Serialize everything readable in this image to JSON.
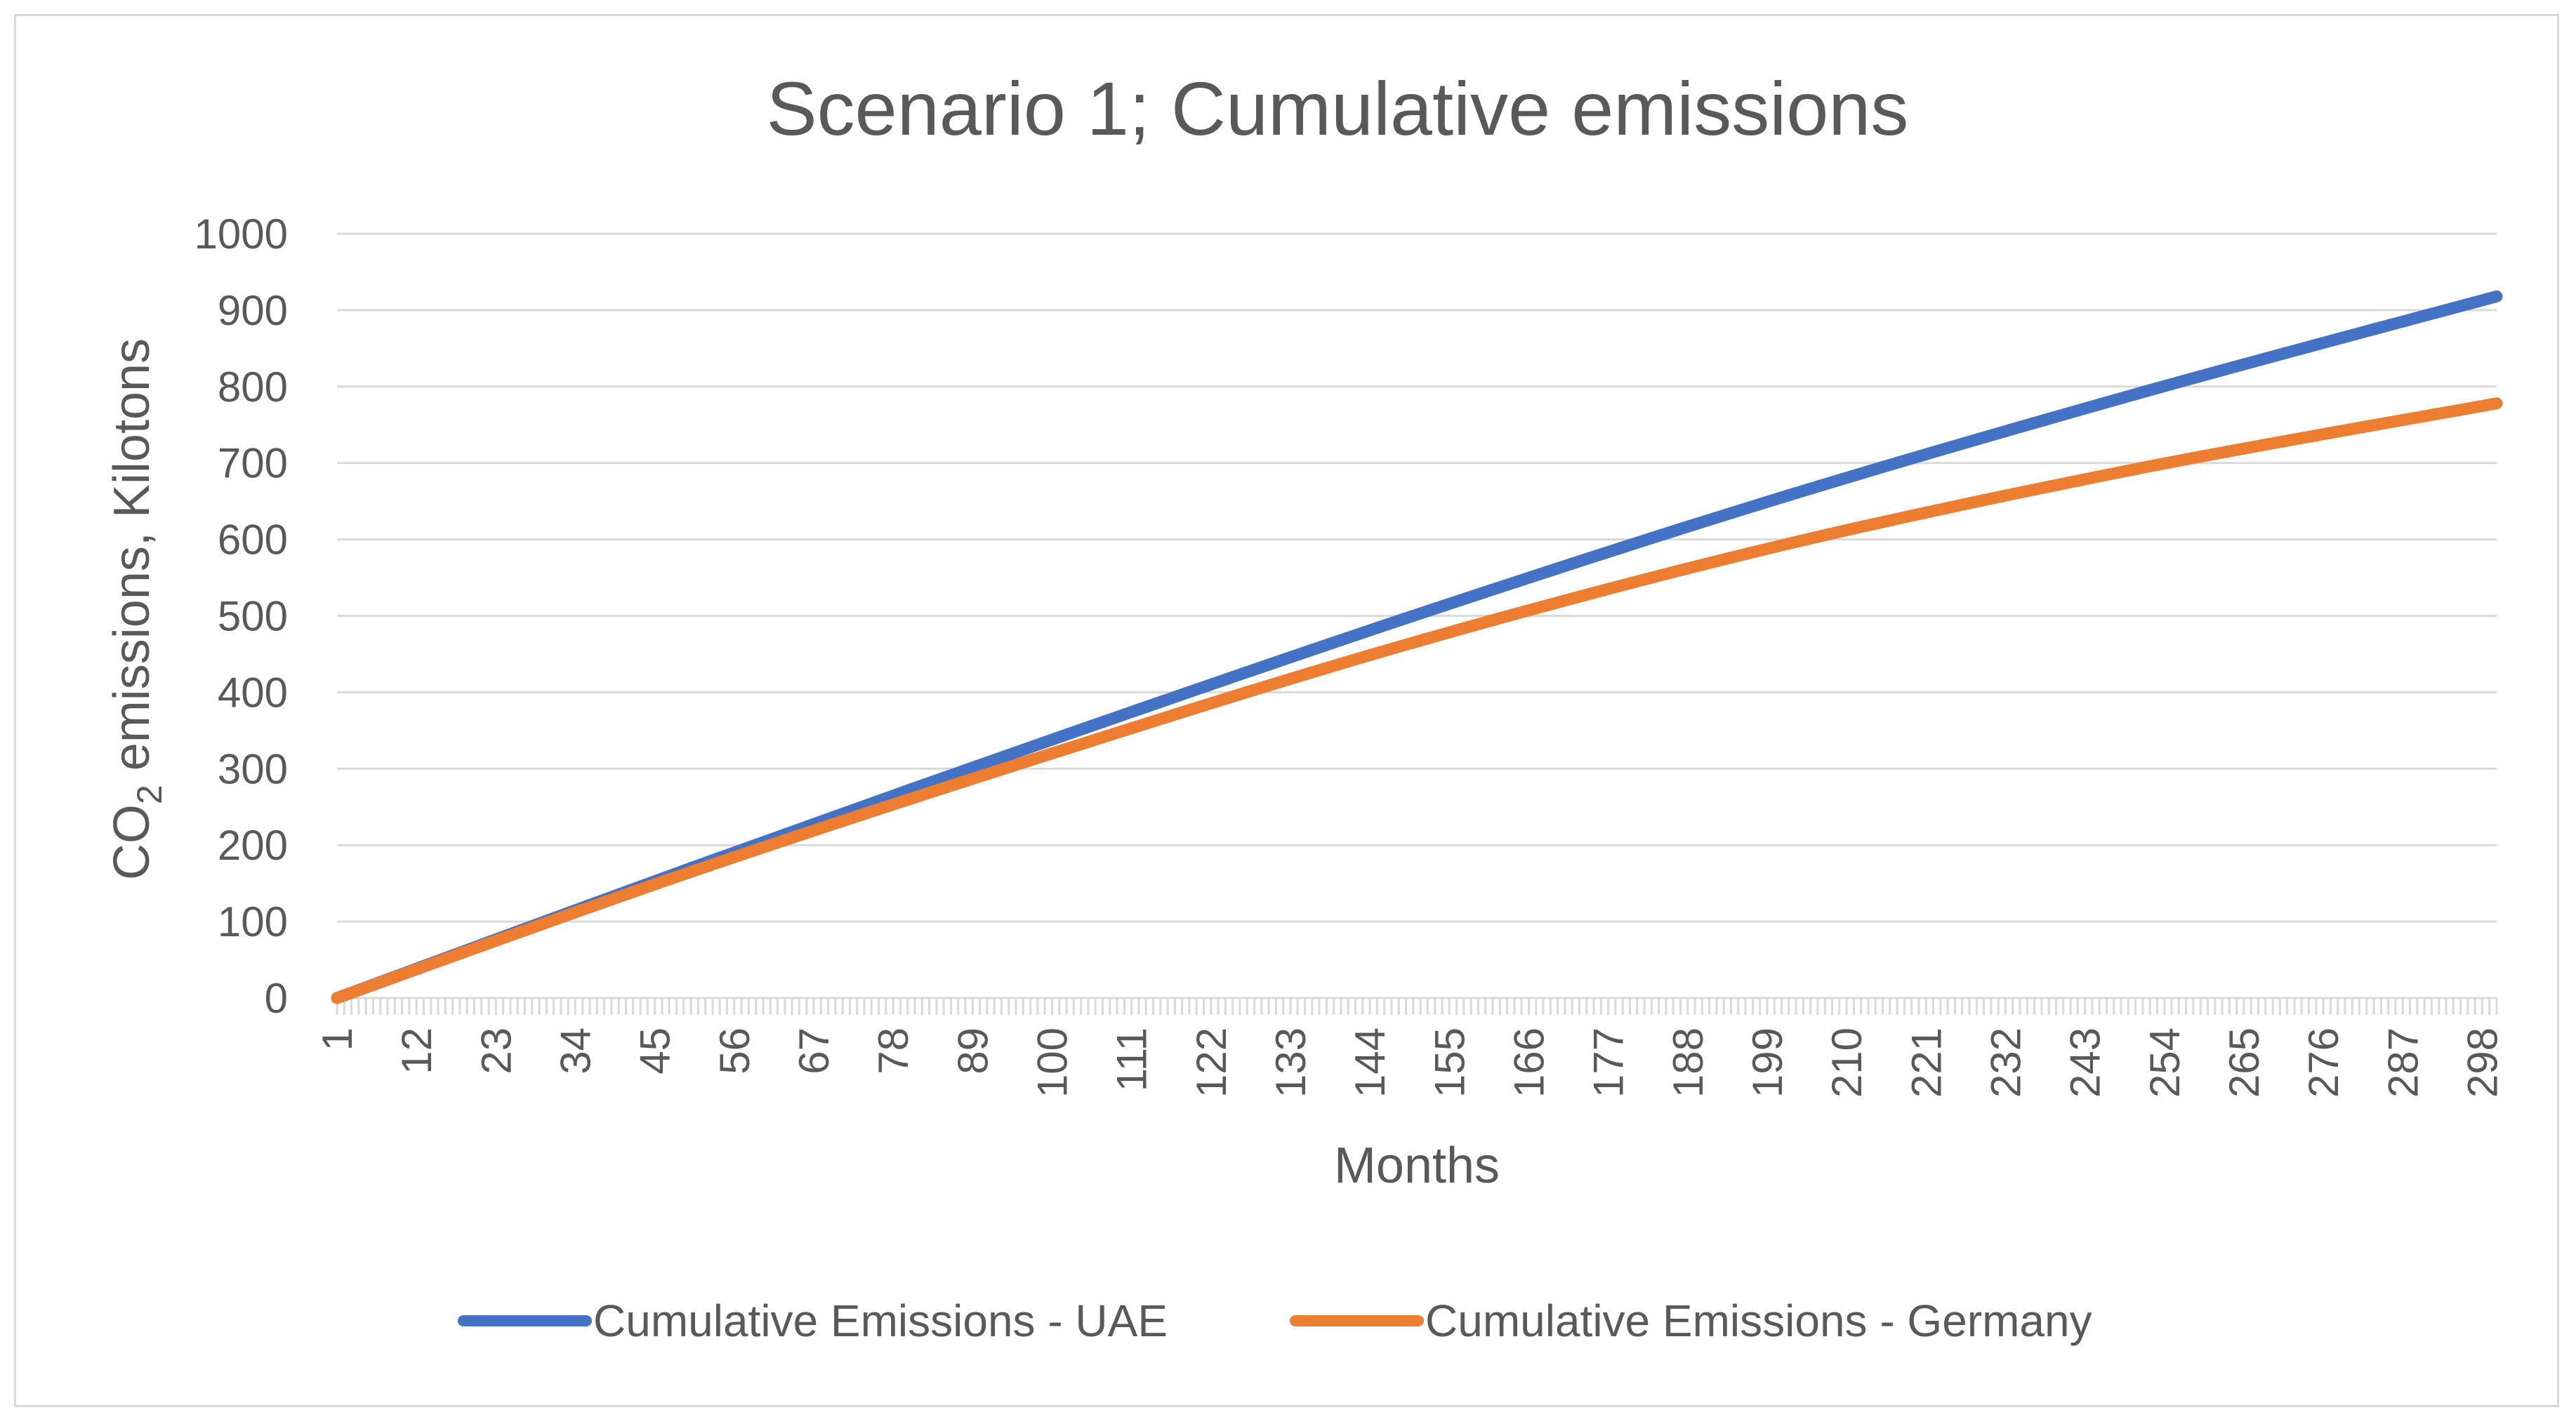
{
  "chart_data": {
    "type": "line",
    "title": "Scenario 1; Cumulative emissions",
    "xlabel": "Months",
    "ylabel_prefix": "CO",
    "ylabel_subscript": "2",
    "ylabel_suffix": " emissions, Kilotons",
    "ylim": [
      0,
      1000
    ],
    "ytick_step": 100,
    "yticks": [
      "0",
      "100",
      "200",
      "300",
      "400",
      "500",
      "600",
      "700",
      "800",
      "900",
      "1000"
    ],
    "x_range": [
      1,
      300
    ],
    "xticks": [
      "1",
      "12",
      "23",
      "34",
      "45",
      "56",
      "67",
      "78",
      "89",
      "100",
      "111",
      "122",
      "133",
      "144",
      "155",
      "166",
      "177",
      "188",
      "199",
      "210",
      "221",
      "232",
      "243",
      "254",
      "265",
      "276",
      "287",
      "298"
    ],
    "grid": true,
    "legend_position": "bottom",
    "series": [
      {
        "name": "Cumulative Emissions - UAE",
        "color": "#4472c4",
        "x": [
          1,
          50,
          100,
          150,
          200,
          250,
          300
        ],
        "values": [
          0,
          170,
          338,
          500,
          652,
          790,
          918
        ]
      },
      {
        "name": "Cumulative Emissions - Germany",
        "color": "#ed7d31",
        "x": [
          1,
          50,
          100,
          150,
          200,
          250,
          300
        ],
        "values": [
          0,
          165,
          320,
          465,
          590,
          692,
          778
        ]
      }
    ]
  }
}
